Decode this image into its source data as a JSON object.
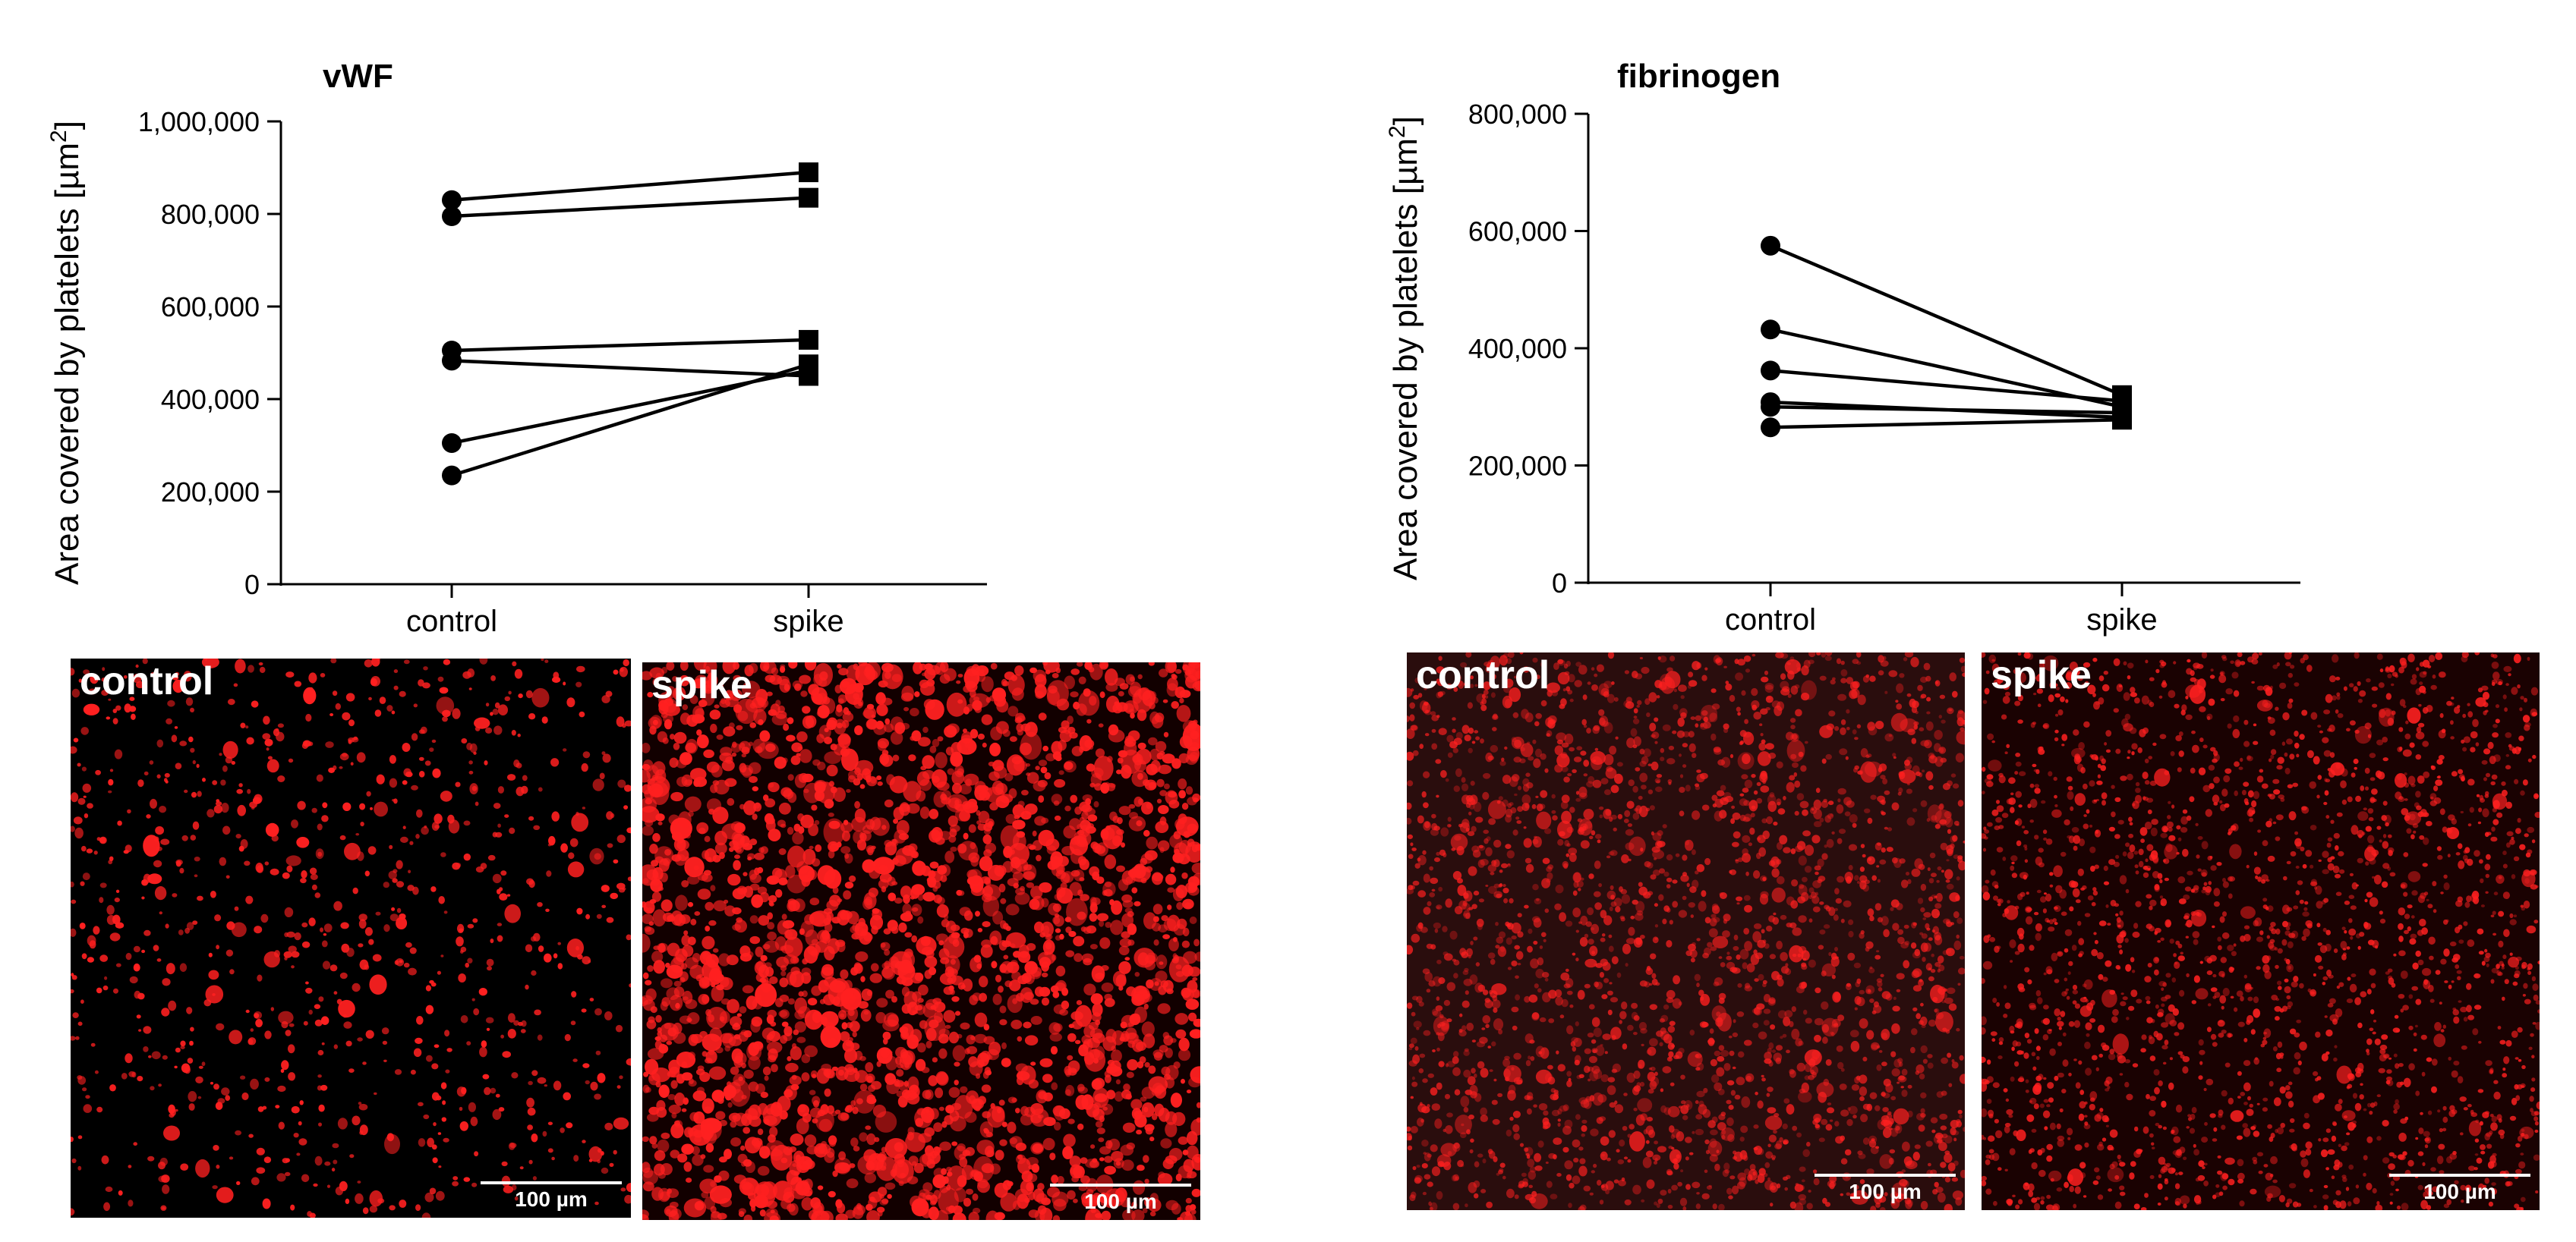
{
  "chart_data": [
    {
      "type": "line",
      "title": "vWF",
      "xlabel": "",
      "ylabel": "Area covered by platelets [µm²]",
      "ylabel_text": "Area covered by platelets [µm",
      "ylabel_sup": "2",
      "ylabel_close": "]",
      "categories": [
        "control",
        "spike"
      ],
      "ylim": [
        0,
        1000000
      ],
      "yticks": [
        0,
        200000,
        400000,
        600000,
        800000,
        1000000
      ],
      "ytick_labels": [
        "0",
        "200,000",
        "400,000",
        "600,000",
        "800,000",
        "1,000,000"
      ],
      "markers": [
        "circle",
        "square"
      ],
      "grid": false,
      "series": [
        {
          "values": [
            830000,
            890000
          ]
        },
        {
          "values": [
            795000,
            835000
          ]
        },
        {
          "values": [
            505000,
            528000
          ]
        },
        {
          "values": [
            483000,
            450000
          ]
        },
        {
          "values": [
            305000,
            462000
          ]
        },
        {
          "values": [
            235000,
            475000
          ]
        }
      ]
    },
    {
      "type": "line",
      "title": "fibrinogen",
      "xlabel": "",
      "ylabel": "Area covered by platelets [µm²]",
      "ylabel_text": "Area covered by platelets [µm",
      "ylabel_sup": "2",
      "ylabel_close": "]",
      "categories": [
        "control",
        "spike"
      ],
      "ylim": [
        0,
        800000
      ],
      "yticks": [
        0,
        200000,
        400000,
        600000,
        800000
      ],
      "ytick_labels": [
        "0",
        "200,000",
        "400,000",
        "600,000",
        "800,000"
      ],
      "markers": [
        "circle",
        "square"
      ],
      "grid": false,
      "series": [
        {
          "values": [
            575000,
            320000
          ]
        },
        {
          "values": [
            432000,
            300000
          ]
        },
        {
          "values": [
            362000,
            310000
          ]
        },
        {
          "values": [
            308000,
            282000
          ]
        },
        {
          "values": [
            300000,
            290000
          ]
        },
        {
          "values": [
            265000,
            278000
          ]
        }
      ]
    }
  ],
  "images": [
    {
      "label": "control",
      "scalebar": "100 µm",
      "style": "sparse"
    },
    {
      "label": "spike",
      "scalebar": "100 µm",
      "style": "dense"
    },
    {
      "label": "control",
      "scalebar": "100 µm",
      "style": "hazy"
    },
    {
      "label": "spike",
      "scalebar": "100 µm",
      "style": "fine"
    }
  ],
  "colors": {
    "line": "#000000",
    "platelet": "#ff2020",
    "micro_bg": "#000000",
    "scalebar": "#ffffff"
  }
}
